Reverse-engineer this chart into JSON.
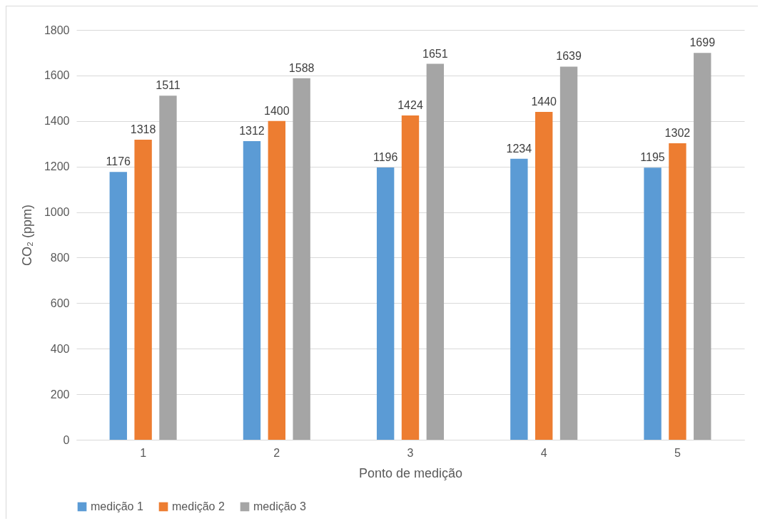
{
  "chart_data": {
    "type": "bar",
    "xlabel": "Ponto de medição",
    "ylabel": "CO₂ (ppm)",
    "categories": [
      "1",
      "2",
      "3",
      "4",
      "5"
    ],
    "series": [
      {
        "name": "medição 1",
        "color": "#5b9bd5",
        "values": [
          1176,
          1312,
          1196,
          1234,
          1195
        ]
      },
      {
        "name": "medição 2",
        "color": "#ed7d31",
        "values": [
          1318,
          1400,
          1424,
          1440,
          1302
        ]
      },
      {
        "name": "medição 3",
        "color": "#a5a5a5",
        "values": [
          1511,
          1588,
          1651,
          1639,
          1699
        ]
      }
    ],
    "ylim": [
      0,
      1800
    ],
    "yticks": [
      0,
      200,
      400,
      600,
      800,
      1000,
      1200,
      1400,
      1600,
      1800
    ],
    "grid": "y",
    "legend": "bottom",
    "data_labels": true
  }
}
